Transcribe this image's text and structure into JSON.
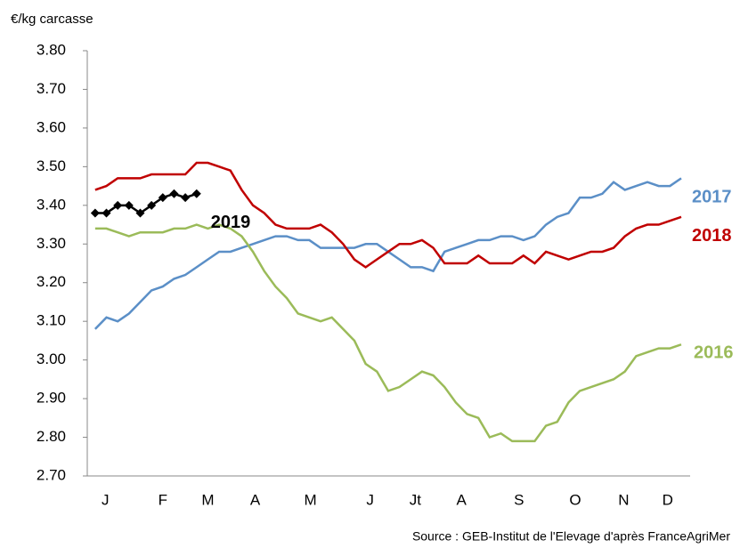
{
  "chart_data": {
    "type": "line",
    "y_label": "€/kg carcasse",
    "source": "Source : GEB-Institut de l'Elevage d'après FranceAgriMer",
    "x": [
      1,
      2,
      3,
      4,
      5,
      6,
      7,
      8,
      9,
      10,
      11,
      12,
      13,
      14,
      15,
      16,
      17,
      18,
      19,
      20,
      21,
      22,
      23,
      24,
      25,
      26,
      27,
      28,
      29,
      30,
      31,
      32,
      33,
      34,
      35,
      36,
      37,
      38,
      39,
      40,
      41,
      42,
      43,
      44,
      45,
      46,
      47,
      48,
      49,
      50,
      51,
      52,
      53
    ],
    "xlim": [
      0.3,
      53
    ],
    "xticks": [
      {
        "value": 1.9,
        "label": "J"
      },
      {
        "value": 7.0,
        "label": "F"
      },
      {
        "value": 11.0,
        "label": "M"
      },
      {
        "value": 15.2,
        "label": "A"
      },
      {
        "value": 20.1,
        "label": "M"
      },
      {
        "value": 25.4,
        "label": "J"
      },
      {
        "value": 29.4,
        "label": "Jt"
      },
      {
        "value": 33.5,
        "label": "A"
      },
      {
        "value": 38.6,
        "label": "S"
      },
      {
        "value": 43.6,
        "label": "O"
      },
      {
        "value": 47.9,
        "label": "N"
      },
      {
        "value": 51.8,
        "label": "D"
      }
    ],
    "ylim": [
      2.7,
      3.8
    ],
    "yticks": [
      {
        "value": 2.7,
        "label": "2.70"
      },
      {
        "value": 2.8,
        "label": "2.80"
      },
      {
        "value": 2.9,
        "label": "2.90"
      },
      {
        "value": 3.0,
        "label": "3.00"
      },
      {
        "value": 3.1,
        "label": "3.10"
      },
      {
        "value": 3.2,
        "label": "3.20"
      },
      {
        "value": 3.3,
        "label": "3.30"
      },
      {
        "value": 3.4,
        "label": "3.40"
      },
      {
        "value": 3.5,
        "label": "3.50"
      },
      {
        "value": 3.6,
        "label": "3.60"
      },
      {
        "value": 3.7,
        "label": "3.70"
      },
      {
        "value": 3.8,
        "label": "3.80"
      }
    ],
    "grid": false,
    "series": [
      {
        "name": "2017",
        "color": "#5b8fc7",
        "markers": false,
        "values": [
          3.08,
          3.11,
          3.1,
          3.12,
          3.15,
          3.18,
          3.19,
          3.21,
          3.22,
          3.24,
          3.26,
          3.28,
          3.28,
          3.29,
          3.3,
          3.31,
          3.32,
          3.32,
          3.31,
          3.31,
          3.29,
          3.29,
          3.29,
          3.29,
          3.3,
          3.3,
          3.28,
          3.26,
          3.24,
          3.24,
          3.23,
          3.28,
          3.29,
          3.3,
          3.31,
          3.31,
          3.32,
          3.32,
          3.31,
          3.32,
          3.35,
          3.37,
          3.38,
          3.42,
          3.42,
          3.43,
          3.46,
          3.44,
          3.45,
          3.46,
          3.45,
          3.45,
          3.47
        ]
      },
      {
        "name": "2018",
        "color": "#c00000",
        "markers": false,
        "values": [
          3.44,
          3.45,
          3.47,
          3.47,
          3.47,
          3.48,
          3.48,
          3.48,
          3.48,
          3.51,
          3.51,
          3.5,
          3.49,
          3.44,
          3.4,
          3.38,
          3.35,
          3.34,
          3.34,
          3.34,
          3.35,
          3.33,
          3.3,
          3.26,
          3.24,
          3.26,
          3.28,
          3.3,
          3.3,
          3.31,
          3.29,
          3.25,
          3.25,
          3.25,
          3.27,
          3.25,
          3.25,
          3.25,
          3.27,
          3.25,
          3.28,
          3.27,
          3.26,
          3.27,
          3.28,
          3.28,
          3.29,
          3.32,
          3.34,
          3.35,
          3.35,
          3.36,
          3.37
        ]
      },
      {
        "name": "2016",
        "color": "#9bbb59",
        "markers": false,
        "values": [
          3.34,
          3.34,
          3.33,
          3.32,
          3.33,
          3.33,
          3.33,
          3.34,
          3.34,
          3.35,
          3.34,
          3.35,
          3.34,
          3.32,
          3.28,
          3.23,
          3.19,
          3.16,
          3.12,
          3.11,
          3.1,
          3.11,
          3.08,
          3.05,
          2.99,
          2.97,
          2.92,
          2.93,
          2.95,
          2.97,
          2.96,
          2.93,
          2.89,
          2.86,
          2.85,
          2.8,
          2.81,
          2.79,
          2.79,
          2.79,
          2.83,
          2.84,
          2.89,
          2.92,
          2.93,
          2.94,
          2.95,
          2.97,
          3.01,
          3.02,
          3.03,
          3.03,
          3.04
        ]
      },
      {
        "name": "2019",
        "color": "#000000",
        "markers": true,
        "values": [
          3.38,
          3.38,
          3.4,
          3.4,
          3.38,
          3.4,
          3.42,
          3.43,
          3.42,
          3.43,
          null,
          null,
          null,
          null,
          null,
          null,
          null,
          null,
          null,
          null,
          null,
          null,
          null,
          null,
          null,
          null,
          null,
          null,
          null,
          null,
          null,
          null,
          null,
          null,
          null,
          null,
          null,
          null,
          null,
          null,
          null,
          null,
          null,
          null,
          null,
          null,
          null,
          null,
          null,
          null,
          null,
          null,
          null
        ]
      }
    ]
  }
}
